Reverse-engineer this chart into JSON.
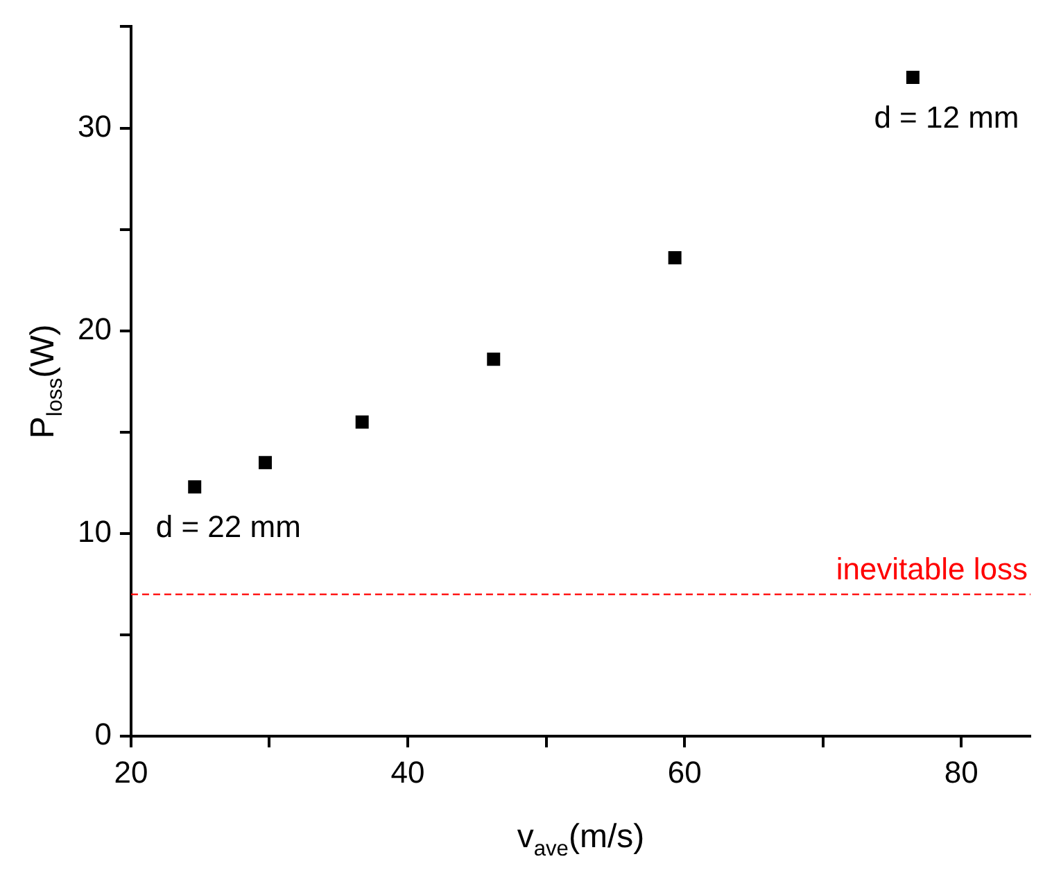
{
  "chart_data": {
    "type": "scatter",
    "xlabel": "v$_{ave}$(m/s)",
    "ylabel": "P$_{loss}$(W)",
    "x": [
      24.6,
      29.7,
      36.7,
      46.2,
      59.3,
      76.5
    ],
    "series": [
      {
        "color": "#000000",
        "values": [
          12.3,
          13.5,
          15.5,
          18.6,
          23.6,
          32.5
        ]
      }
    ],
    "xlim": [
      20,
      85
    ],
    "xticks": [
      20,
      {
        "value": 30,
        "label": null
      },
      40,
      {
        "value": 50,
        "label": null
      },
      60,
      {
        "value": 70,
        "label": null
      },
      80
    ],
    "ylim": [
      0,
      35
    ],
    "yticks": [
      0,
      {
        "value": 5,
        "label": null
      },
      10,
      {
        "value": 15,
        "label": null
      },
      20,
      {
        "value": 25,
        "label": null
      },
      30,
      {
        "value": 35,
        "label": null
      }
    ],
    "ref_lines": [
      {
        "axis": "y",
        "value": 7,
        "label": "inevitable loss",
        "color": "#ff0000",
        "line_style": "dashed"
      }
    ],
    "annotations": [
      {
        "text": "d = 22 mm",
        "x": 24.6,
        "y": 12.3
      },
      {
        "text": "d = 12 mm",
        "x": 76.5,
        "y": 32.5
      }
    ],
    "marker": "square",
    "grid": false,
    "legend": false
  }
}
